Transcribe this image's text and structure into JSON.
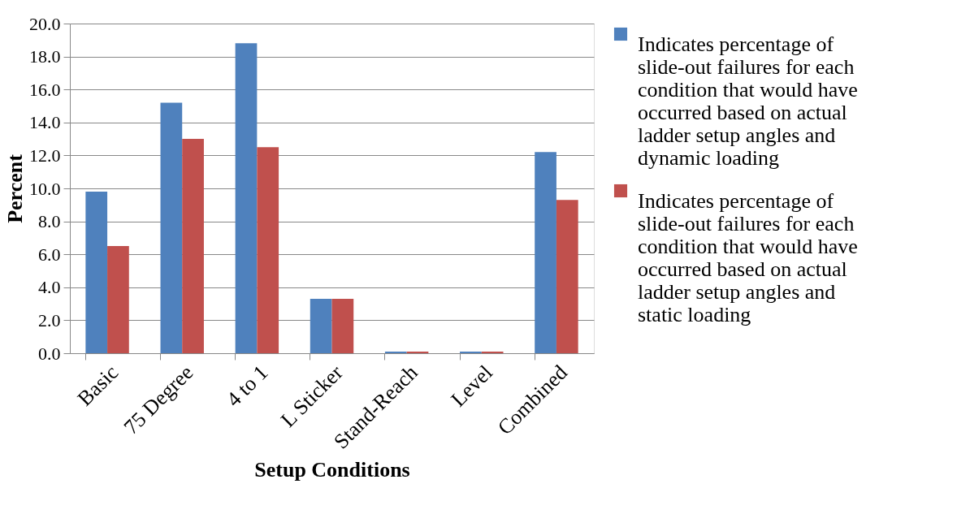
{
  "chart_data": {
    "type": "bar",
    "xlabel": "Setup Conditions",
    "ylabel": "Percent",
    "categories": [
      "Basic",
      "75 Degree",
      "4 to 1",
      "L Sticker",
      "Stand-Reach",
      "Level",
      "Combined"
    ],
    "series": [
      {
        "name": "Indicates percentage of slide-out failures for each condition that would have occurred based on actual ladder setup angles and dynamic loading",
        "color": "#4f81bd",
        "values": [
          9.8,
          15.2,
          18.8,
          3.3,
          0.1,
          0.1,
          12.2
        ]
      },
      {
        "name": "Indicates percentage of slide-out failures for each condition that would have occurred based on actual ladder setup angles and static loading",
        "color": "#c0504d",
        "values": [
          6.5,
          13.0,
          12.5,
          3.3,
          0.1,
          0.1,
          9.3
        ]
      }
    ],
    "ylim": [
      0,
      20
    ],
    "yticks": [
      {
        "value": 0,
        "label": "0.0"
      },
      {
        "value": 2,
        "label": "2.0"
      },
      {
        "value": 4,
        "label": "4.0"
      },
      {
        "value": 6,
        "label": "6.0"
      },
      {
        "value": 8,
        "label": "8.0"
      },
      {
        "value": 10,
        "label": "10.0"
      },
      {
        "value": 12,
        "label": "12.0"
      },
      {
        "value": 14,
        "label": "14.0"
      },
      {
        "value": 16,
        "label": "16.0"
      },
      {
        "value": 18,
        "label": "18.0"
      },
      {
        "value": 20,
        "label": "20.0"
      }
    ],
    "grid": "y",
    "legend": "right"
  }
}
